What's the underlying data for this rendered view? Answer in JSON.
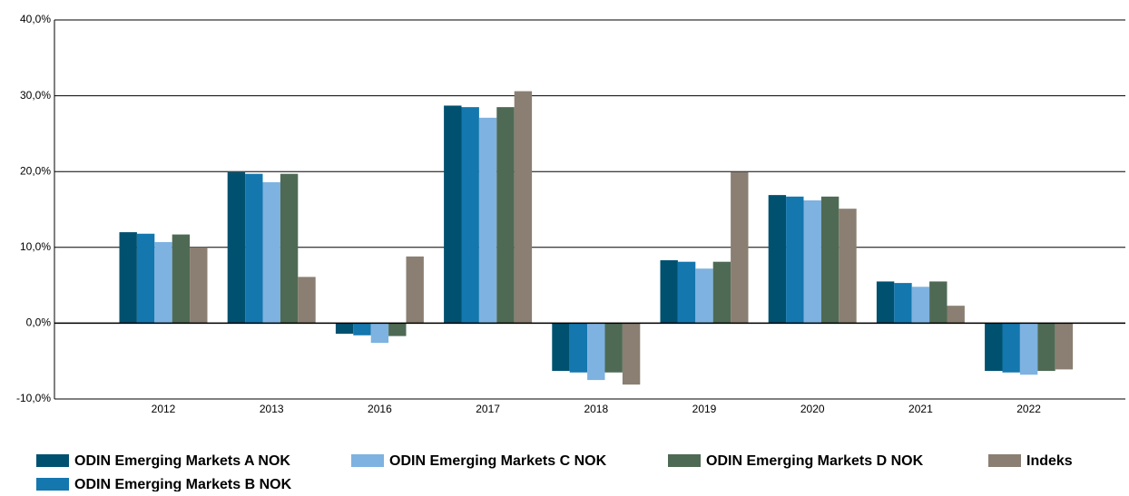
{
  "chart_data": {
    "type": "bar",
    "categories": [
      "2012",
      "2013",
      "2016",
      "2017",
      "2018",
      "2019",
      "2020",
      "2021",
      "2022"
    ],
    "series": [
      {
        "name": "ODIN Emerging Markets A NOK",
        "color": "#00516f",
        "values": [
          12.0,
          19.9,
          -1.4,
          28.7,
          -6.3,
          8.3,
          16.9,
          5.5,
          -6.3
        ]
      },
      {
        "name": "ODIN Emerging Markets B NOK",
        "color": "#1477ae",
        "values": [
          11.8,
          19.7,
          -1.6,
          28.5,
          -6.5,
          8.1,
          16.7,
          5.3,
          -6.5
        ]
      },
      {
        "name": "ODIN Emerging Markets C NOK",
        "color": "#7eb2e0",
        "values": [
          10.7,
          18.6,
          -2.6,
          27.1,
          -7.5,
          7.2,
          16.2,
          4.8,
          -6.8
        ]
      },
      {
        "name": "ODIN Emerging Markets D NOK",
        "color": "#4f6a54",
        "values": [
          11.7,
          19.7,
          -1.7,
          28.5,
          -6.5,
          8.1,
          16.7,
          5.5,
          -6.3
        ]
      },
      {
        "name": "Indeks",
        "color": "#8a7f72",
        "values": [
          10.0,
          6.1,
          8.8,
          30.6,
          -8.1,
          19.9,
          15.1,
          2.3,
          -6.1
        ]
      }
    ],
    "ylim": [
      -10,
      40
    ],
    "yticks": [
      {
        "value": -10,
        "label": "-10,0%"
      },
      {
        "value": 0,
        "label": "0,0%"
      },
      {
        "value": 10,
        "label": "10,0%"
      },
      {
        "value": 20,
        "label": "20,0%"
      },
      {
        "value": 30,
        "label": "30,0%"
      },
      {
        "value": 40,
        "label": "40,0%"
      }
    ],
    "grid": true
  }
}
